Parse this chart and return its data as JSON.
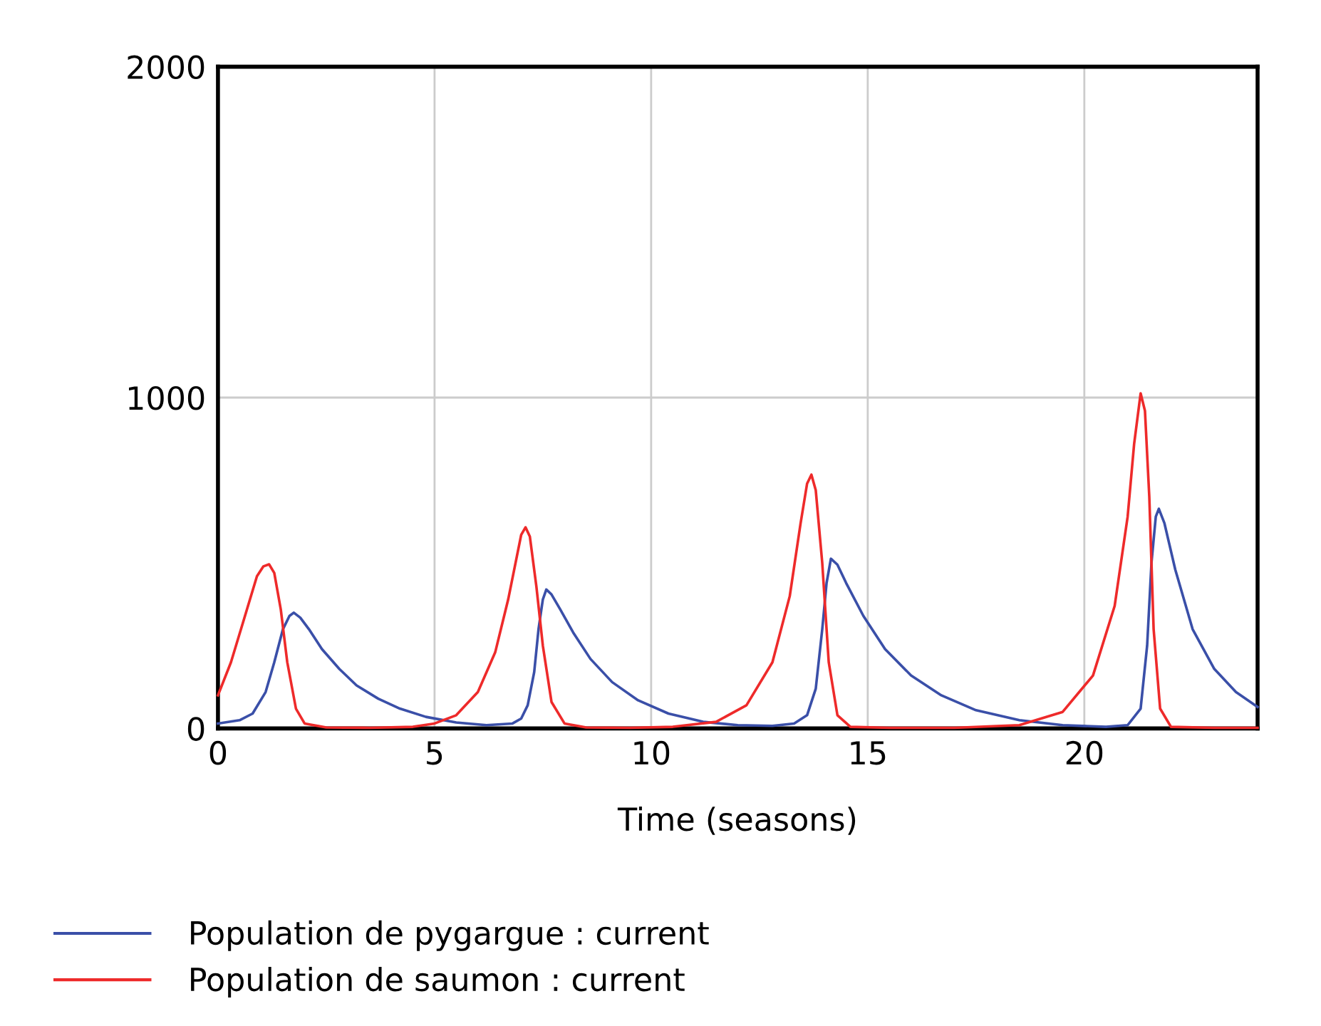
{
  "chart_data": {
    "type": "line",
    "xlabel": "Time (seasons)",
    "xlim": [
      0,
      24
    ],
    "ylim": [
      0,
      2000
    ],
    "xticks": [
      0,
      5,
      10,
      15,
      20
    ],
    "yticks": [
      0,
      1000,
      2000
    ],
    "grid": true,
    "legend": "bottom left",
    "marker": "none",
    "line_style": "solid",
    "series": [
      {
        "name": "Population de pygargue : current",
        "color": "#3a4fa8",
        "x": [
          0,
          0.5,
          0.8,
          1.1,
          1.3,
          1.5,
          1.65,
          1.75,
          1.9,
          2.1,
          2.4,
          2.8,
          3.2,
          3.7,
          4.2,
          4.8,
          5.5,
          6.2,
          6.8,
          7.0,
          7.15,
          7.3,
          7.4,
          7.5,
          7.58,
          7.7,
          7.9,
          8.2,
          8.6,
          9.1,
          9.7,
          10.4,
          11.2,
          12,
          12.8,
          13.3,
          13.6,
          13.8,
          13.95,
          14.05,
          14.15,
          14.3,
          14.5,
          14.9,
          15.4,
          16,
          16.7,
          17.5,
          18.5,
          19.5,
          20.5,
          21.0,
          21.3,
          21.45,
          21.55,
          21.65,
          21.72,
          21.85,
          22.1,
          22.5,
          23,
          23.5,
          24
        ],
        "values": [
          15,
          25,
          45,
          110,
          200,
          300,
          340,
          350,
          335,
          300,
          240,
          180,
          130,
          90,
          60,
          35,
          18,
          10,
          15,
          30,
          70,
          170,
          300,
          390,
          420,
          405,
          360,
          290,
          210,
          140,
          85,
          45,
          20,
          10,
          8,
          15,
          40,
          120,
          300,
          440,
          513,
          495,
          440,
          340,
          240,
          160,
          100,
          55,
          25,
          10,
          5,
          10,
          60,
          250,
          500,
          640,
          664,
          620,
          480,
          300,
          180,
          110,
          65
        ]
      },
      {
        "name": "Population de saumon : current",
        "color": "#ee2a2a",
        "x": [
          0,
          0.3,
          0.6,
          0.9,
          1.05,
          1.18,
          1.3,
          1.45,
          1.6,
          1.8,
          2.0,
          2.5,
          3.5,
          4.5,
          5,
          5.5,
          6,
          6.4,
          6.7,
          6.9,
          7.0,
          7.1,
          7.2,
          7.35,
          7.5,
          7.7,
          8.0,
          8.5,
          9.5,
          10.5,
          11.5,
          12.2,
          12.8,
          13.2,
          13.45,
          13.6,
          13.7,
          13.8,
          13.95,
          14.1,
          14.3,
          14.6,
          15.5,
          17,
          18.5,
          19.5,
          20.2,
          20.7,
          21.0,
          21.15,
          21.3,
          21.4,
          21.5,
          21.6,
          21.75,
          22,
          23,
          24
        ],
        "values": [
          100,
          200,
          330,
          460,
          490,
          496,
          470,
          360,
          200,
          60,
          15,
          3,
          2,
          5,
          15,
          40,
          110,
          230,
          390,
          520,
          585,
          608,
          580,
          430,
          250,
          80,
          15,
          3,
          2,
          5,
          20,
          70,
          200,
          400,
          620,
          740,
          767,
          720,
          500,
          200,
          40,
          5,
          2,
          2,
          10,
          50,
          160,
          370,
          640,
          860,
          1013,
          960,
          700,
          300,
          60,
          5,
          2,
          2
        ]
      }
    ]
  }
}
